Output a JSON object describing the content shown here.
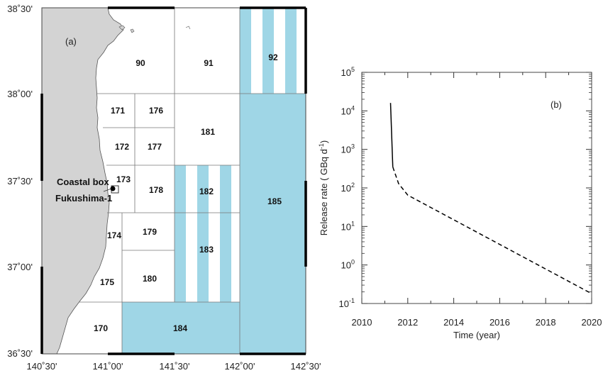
{
  "chart_data": [
    {
      "type": "map",
      "panel_label": "(a)",
      "lat_ticks": [
        "38˚30'",
        "38˚00'",
        "37˚30'",
        "37˚00'",
        "36˚30'"
      ],
      "lon_ticks": [
        "140˚30'",
        "141˚00'",
        "141˚30'",
        "142˚00'",
        "142˚30'"
      ],
      "boxes": [
        "90",
        "91",
        "92",
        "171",
        "176",
        "172",
        "177",
        "181",
        "173",
        "178",
        "182",
        "185",
        "174",
        "179",
        "183",
        "175",
        "180",
        "170",
        "184"
      ],
      "annotations": [
        "Coastal box",
        "Fukushima-1"
      ],
      "land_color": "#d3d3d3",
      "highlight_color": "#9fd6e6"
    },
    {
      "type": "line",
      "panel_label": "(b)",
      "xlabel": "Time (year)",
      "ylabel_main": "Release rate ( GBq d",
      "ylabel_sup": "-1",
      "ylabel_close": ")",
      "xlim": [
        2010,
        2020
      ],
      "ylim": [
        0.1,
        100000
      ],
      "yscale": "log",
      "x_ticks": [
        "2010",
        "2012",
        "2014",
        "2016",
        "2018",
        "2020"
      ],
      "y_tick_base": "10",
      "y_tick_exps": [
        "5",
        "4",
        "3",
        "2",
        "1",
        "0",
        "-1"
      ],
      "series": [
        {
          "style": "solid",
          "x": [
            2011.25,
            2011.35
          ],
          "y": [
            16000,
            350
          ]
        },
        {
          "style": "dashed",
          "x": [
            2011.35,
            2011.6,
            2012.0,
            2020.0
          ],
          "y": [
            350,
            130,
            65,
            0.18
          ]
        }
      ]
    }
  ]
}
